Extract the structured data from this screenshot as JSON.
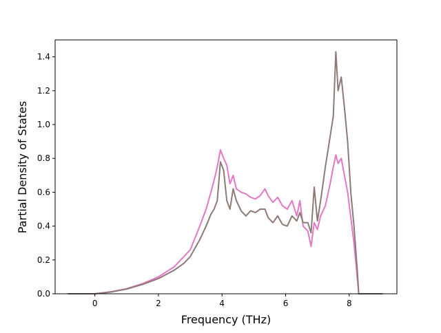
{
  "chart_data": {
    "type": "line",
    "title": "",
    "xlabel": "Frequency (THz)",
    "ylabel": "Partial Density of States",
    "xlim": [
      -1.25,
      9.5
    ],
    "ylim": [
      0.0,
      1.5
    ],
    "xticks": [
      0,
      2,
      4,
      6,
      8
    ],
    "xtick_labels": [
      "0",
      "2",
      "4",
      "6",
      "8"
    ],
    "yticks": [
      0.0,
      0.2,
      0.4,
      0.6,
      0.8,
      1.0,
      1.2,
      1.4
    ],
    "ytick_labels": [
      "0.0",
      "0.2",
      "0.4",
      "0.6",
      "0.8",
      "1.0",
      "1.2",
      "1.4"
    ],
    "grid": false,
    "legend": "none",
    "series": [
      {
        "color": "#e377c2",
        "x": [
          -0.85,
          0.0,
          0.5,
          1.0,
          1.5,
          2.0,
          2.5,
          2.8,
          3.0,
          3.15,
          3.3,
          3.5,
          3.65,
          3.75,
          3.85,
          3.95,
          4.05,
          4.15,
          4.25,
          4.35,
          4.45,
          4.6,
          4.75,
          4.9,
          5.05,
          5.2,
          5.35,
          5.45,
          5.6,
          5.75,
          5.9,
          6.05,
          6.2,
          6.35,
          6.45,
          6.55,
          6.7,
          6.8,
          6.9,
          7.0,
          7.1,
          7.25,
          7.4,
          7.5,
          7.58,
          7.65,
          7.75,
          7.85,
          7.95,
          8.05,
          8.15,
          8.25,
          8.3,
          8.6,
          9.05
        ],
        "values": [
          0.0,
          0.0,
          0.012,
          0.03,
          0.06,
          0.1,
          0.16,
          0.22,
          0.26,
          0.33,
          0.4,
          0.5,
          0.6,
          0.67,
          0.75,
          0.85,
          0.8,
          0.76,
          0.65,
          0.7,
          0.62,
          0.6,
          0.59,
          0.57,
          0.56,
          0.58,
          0.62,
          0.58,
          0.54,
          0.57,
          0.52,
          0.5,
          0.55,
          0.46,
          0.55,
          0.4,
          0.37,
          0.28,
          0.42,
          0.38,
          0.46,
          0.52,
          0.65,
          0.75,
          0.82,
          0.77,
          0.8,
          0.7,
          0.6,
          0.45,
          0.3,
          0.1,
          0.0,
          0.0,
          0.0
        ]
      },
      {
        "color": "#8c7a76",
        "x": [
          -0.85,
          0.0,
          0.5,
          1.0,
          1.5,
          2.0,
          2.5,
          2.8,
          3.0,
          3.15,
          3.3,
          3.5,
          3.65,
          3.75,
          3.85,
          3.95,
          4.05,
          4.15,
          4.25,
          4.35,
          4.45,
          4.6,
          4.75,
          4.9,
          5.05,
          5.2,
          5.35,
          5.45,
          5.6,
          5.75,
          5.9,
          6.05,
          6.2,
          6.35,
          6.45,
          6.55,
          6.7,
          6.8,
          6.9,
          7.0,
          7.1,
          7.25,
          7.4,
          7.5,
          7.58,
          7.65,
          7.75,
          7.85,
          7.95,
          8.05,
          8.15,
          8.25,
          8.3,
          8.6,
          9.05
        ],
        "values": [
          0.0,
          0.0,
          0.01,
          0.028,
          0.055,
          0.09,
          0.14,
          0.18,
          0.22,
          0.27,
          0.32,
          0.4,
          0.47,
          0.5,
          0.55,
          0.78,
          0.73,
          0.55,
          0.5,
          0.62,
          0.55,
          0.49,
          0.46,
          0.49,
          0.48,
          0.5,
          0.5,
          0.45,
          0.42,
          0.46,
          0.41,
          0.4,
          0.46,
          0.43,
          0.48,
          0.42,
          0.42,
          0.36,
          0.63,
          0.43,
          0.55,
          0.75,
          0.93,
          1.05,
          1.43,
          1.2,
          1.28,
          1.1,
          0.9,
          0.6,
          0.4,
          0.15,
          0.0,
          0.0,
          0.0
        ]
      }
    ]
  }
}
